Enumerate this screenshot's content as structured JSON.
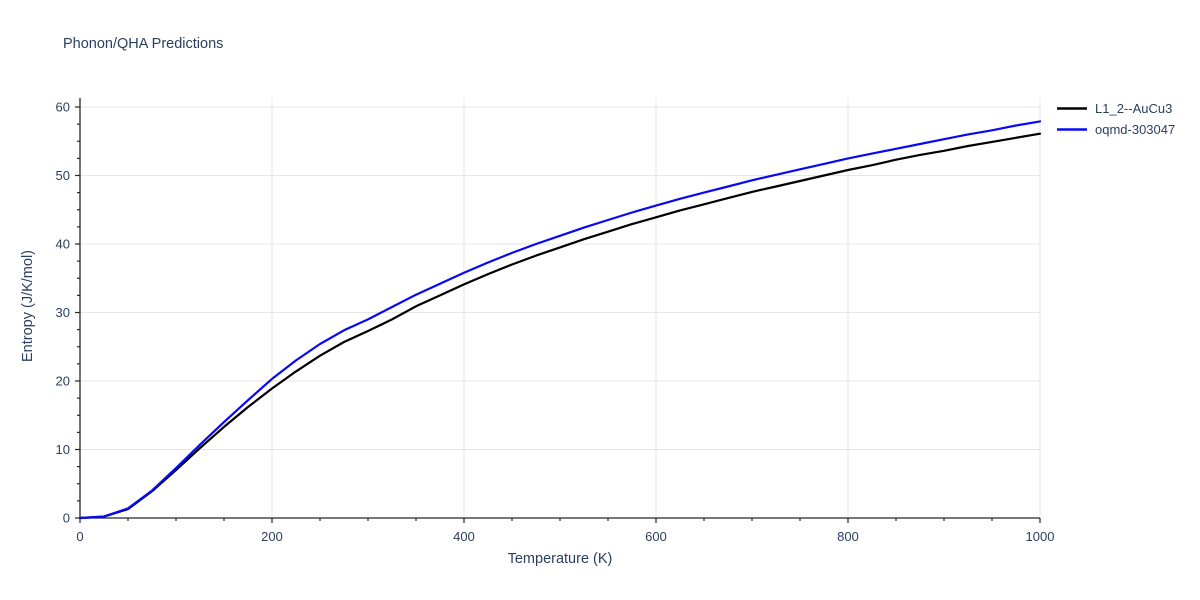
{
  "chart": {
    "title": "Phonon/QHA Predictions",
    "x_axis_title": "Temperature (K)",
    "y_axis_title": "Entropy (J/K/mol)",
    "colors": {
      "text": "#2a3f5f",
      "axis_line": "#262626",
      "gridline": "#e5e5e5",
      "background": "#ffffff"
    }
  },
  "chart_data": {
    "type": "line",
    "title": "Phonon/QHA Predictions",
    "xlabel": "Temperature (K)",
    "ylabel": "Entropy (J/K/mol)",
    "xlim": [
      0,
      1000
    ],
    "ylim": [
      0,
      60
    ],
    "grid": true,
    "legend_position": "top-right-outside",
    "xticks": {
      "values": [
        0,
        200,
        400,
        600,
        800,
        1000
      ],
      "labels": [
        "0",
        "200",
        "400",
        "600",
        "800",
        "1000"
      ]
    },
    "yticks": {
      "values": [
        0,
        10,
        20,
        30,
        40,
        50,
        60
      ],
      "labels": [
        "0",
        "10",
        "20",
        "30",
        "40",
        "50",
        "60"
      ]
    },
    "x_minor_step": 50,
    "y_minor_step": 2.5,
    "x": [
      0,
      25,
      50,
      75,
      100,
      125,
      150,
      175,
      200,
      225,
      250,
      275,
      300,
      325,
      350,
      375,
      400,
      425,
      450,
      475,
      500,
      525,
      550,
      575,
      600,
      625,
      650,
      675,
      700,
      725,
      750,
      775,
      800,
      825,
      850,
      875,
      900,
      925,
      950,
      975,
      1000
    ],
    "series": [
      {
        "name": "L1_2--AuCu3",
        "color": "#000000",
        "values": [
          0,
          0.2,
          1.3,
          3.9,
          7.0,
          10.2,
          13.3,
          16.2,
          18.9,
          21.4,
          23.7,
          25.7,
          27.3,
          29.0,
          30.9,
          32.5,
          34.1,
          35.6,
          37.0,
          38.3,
          39.5,
          40.7,
          41.8,
          42.9,
          43.9,
          44.9,
          45.8,
          46.7,
          47.6,
          48.4,
          49.2,
          50.0,
          50.8,
          51.5,
          52.3,
          53.0,
          53.6,
          54.3,
          54.9,
          55.5,
          56.1
        ]
      },
      {
        "name": "oqmd-303047",
        "color": "#0808f7",
        "values": [
          0,
          0.2,
          1.4,
          4.0,
          7.3,
          10.7,
          14.0,
          17.2,
          20.3,
          23.0,
          25.4,
          27.4,
          29.0,
          30.8,
          32.6,
          34.2,
          35.8,
          37.3,
          38.7,
          40.0,
          41.2,
          42.4,
          43.5,
          44.6,
          45.6,
          46.6,
          47.5,
          48.4,
          49.3,
          50.1,
          50.9,
          51.7,
          52.5,
          53.2,
          53.9,
          54.6,
          55.3,
          56.0,
          56.6,
          57.3,
          57.9
        ]
      }
    ]
  }
}
